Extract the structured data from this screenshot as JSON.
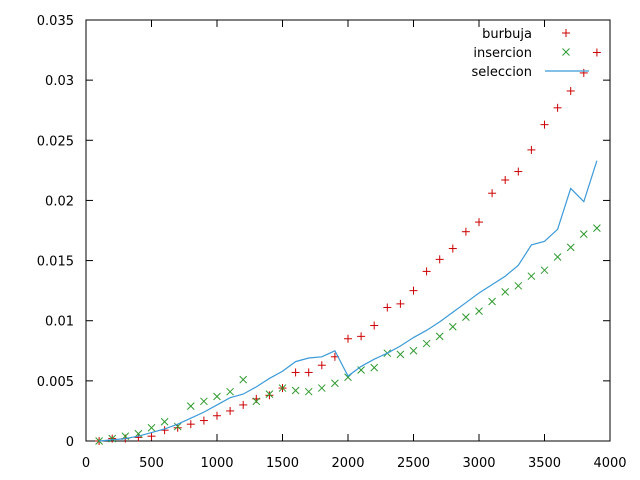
{
  "chart_data": {
    "type": "scatter",
    "title": "",
    "xlabel": "",
    "ylabel": "",
    "xlim": [
      0,
      4000
    ],
    "ylim": [
      0,
      0.035
    ],
    "xticks": [
      0,
      500,
      1000,
      1500,
      2000,
      2500,
      3000,
      3500,
      4000
    ],
    "xtick_labels": [
      "0",
      "500",
      "1000",
      "1500",
      "2000",
      "2500",
      "3000",
      "3500",
      "4000"
    ],
    "yticks": [
      0,
      0.005,
      0.01,
      0.015,
      0.02,
      0.025,
      0.03,
      0.035
    ],
    "ytick_labels": [
      "0",
      "0.005",
      "0.01",
      "0.015",
      "0.02",
      "0.025",
      "0.03",
      "0.035"
    ],
    "grid": false,
    "legend_position": "top-right",
    "x": [
      100,
      200,
      300,
      400,
      500,
      600,
      700,
      800,
      900,
      1000,
      1100,
      1200,
      1300,
      1400,
      1500,
      1600,
      1700,
      1800,
      1900,
      2000,
      2100,
      2200,
      2300,
      2400,
      2500,
      2600,
      2700,
      2800,
      2900,
      3000,
      3100,
      3200,
      3300,
      3400,
      3500,
      3600,
      3700,
      3800,
      3900
    ],
    "series": [
      {
        "name": "burbuja",
        "style": "plus",
        "color": "#cc0000",
        "values": [
          0.0,
          0.0002,
          0.0002,
          0.0003,
          0.0004,
          0.0009,
          0.0011,
          0.0014,
          0.0017,
          0.0021,
          0.0025,
          0.003,
          0.0035,
          0.0038,
          0.0044,
          0.0057,
          0.0057,
          0.0063,
          0.007,
          0.0085,
          0.0087,
          0.0096,
          0.0111,
          0.0114,
          0.0125,
          0.0141,
          0.0151,
          0.016,
          0.0174,
          0.0182,
          0.0206,
          0.0217,
          0.0224,
          0.0242,
          0.0263,
          0.0277,
          0.0291,
          0.0306,
          0.0323
        ]
      },
      {
        "name": "insercion",
        "style": "cross",
        "color": "#2e9a2e",
        "values": [
          0.0,
          0.0002,
          0.0004,
          0.0006,
          0.0011,
          0.0016,
          0.0012,
          0.0029,
          0.0033,
          0.0037,
          0.0041,
          0.0051,
          0.0033,
          0.0039,
          0.0044,
          0.0042,
          0.0041,
          0.0044,
          0.0048,
          0.0053,
          0.0059,
          0.0061,
          0.0073,
          0.0072,
          0.0075,
          0.0081,
          0.0087,
          0.0095,
          0.0103,
          0.0108,
          0.0116,
          0.0124,
          0.0129,
          0.0137,
          0.0142,
          0.0153,
          0.0161,
          0.0172,
          0.0177
        ]
      },
      {
        "name": "seleccion",
        "style": "line",
        "color": "#3b9ad8",
        "values": [
          0.0,
          0.0001,
          0.0002,
          0.0004,
          0.0007,
          0.001,
          0.0014,
          0.0019,
          0.0024,
          0.003,
          0.0036,
          0.0039,
          0.0045,
          0.0052,
          0.0058,
          0.0066,
          0.0069,
          0.007,
          0.0075,
          0.0054,
          0.0062,
          0.0068,
          0.0073,
          0.0079,
          0.0086,
          0.0092,
          0.0099,
          0.0107,
          0.0115,
          0.0123,
          0.013,
          0.0137,
          0.0146,
          0.0163,
          0.0166,
          0.0176,
          0.021,
          0.0199,
          0.0233
        ]
      }
    ]
  }
}
